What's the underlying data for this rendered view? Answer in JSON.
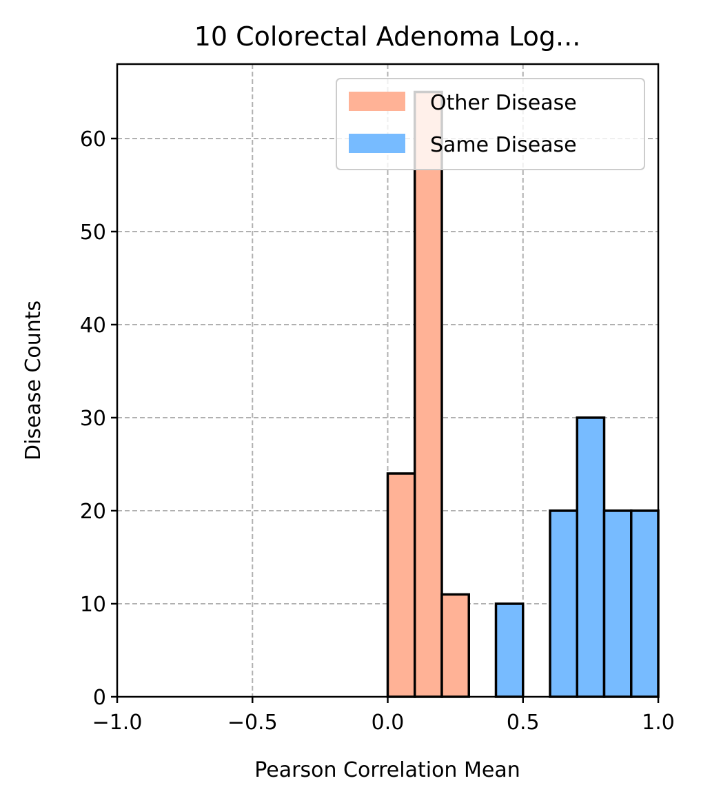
{
  "colors": {
    "other_disease": "#FFB296",
    "same_disease": "#77BBFF",
    "bar_edge": "#000000",
    "grid": "#b0b0b0"
  },
  "chart_data": {
    "type": "bar",
    "title": "10 Colorectal Adenoma Log...",
    "xlabel": "Pearson Correlation Mean",
    "ylabel": "Disease Counts",
    "xlim": [
      -1.0,
      1.0
    ],
    "ylim": [
      0,
      68
    ],
    "xticks": [
      "−1.0",
      "−0.5",
      "0.0",
      "0.5",
      "1.0"
    ],
    "xtick_values": [
      -1.0,
      -0.5,
      0.0,
      0.5,
      1.0
    ],
    "yticks": [
      "0",
      "10",
      "20",
      "30",
      "40",
      "50",
      "60"
    ],
    "ytick_values": [
      0,
      10,
      20,
      30,
      40,
      50,
      60
    ],
    "grid": true,
    "legend_position": "top-right",
    "bin_width": 0.1,
    "series": [
      {
        "name": "Other Disease",
        "bins": [
          {
            "x_start": 0.0,
            "count": 24
          },
          {
            "x_start": 0.1,
            "count": 65
          },
          {
            "x_start": 0.2,
            "count": 11
          }
        ]
      },
      {
        "name": "Same Disease",
        "bins": [
          {
            "x_start": 0.4,
            "count": 10
          },
          {
            "x_start": 0.6,
            "count": 20
          },
          {
            "x_start": 0.7,
            "count": 30
          },
          {
            "x_start": 0.8,
            "count": 20
          },
          {
            "x_start": 0.9,
            "count": 20
          }
        ]
      }
    ]
  }
}
